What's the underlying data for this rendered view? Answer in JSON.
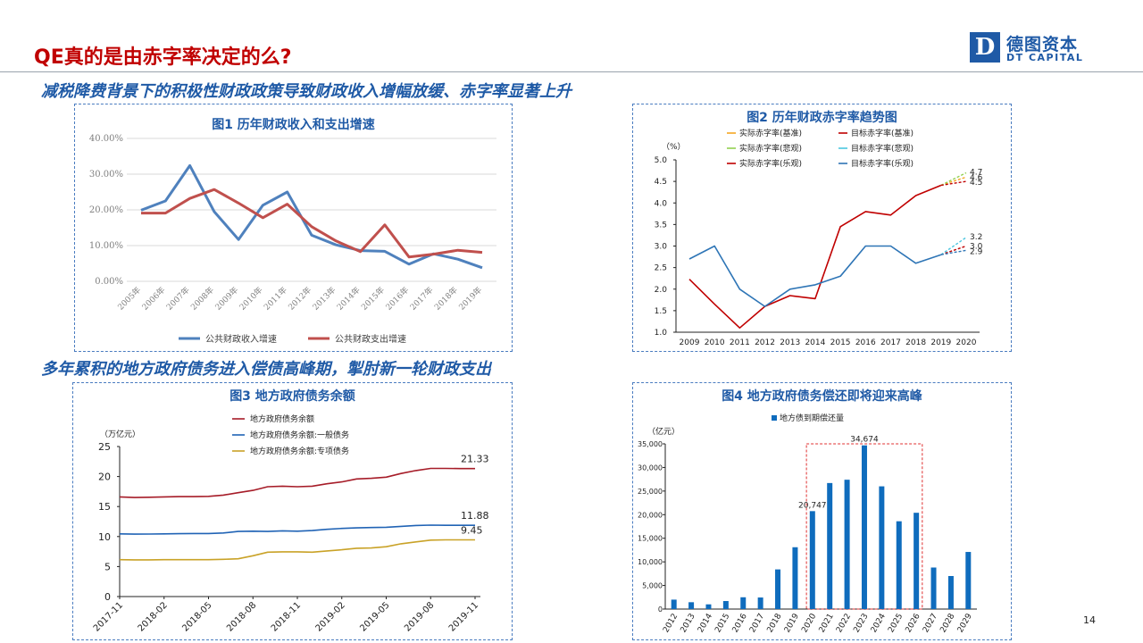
{
  "slide": {
    "title": "QE真的是由赤字率决定的么?",
    "section1": "减税降费背景下的积极性财政政策导致财政收入增幅放缓、赤字率显著上升",
    "section2": "多年累积的地方政府债务进入偿债高峰期，掣肘新一轮财政支出",
    "page_number": "14"
  },
  "logo": {
    "letter": "D",
    "cn": "德图资本",
    "en": "DT CAPITAL",
    "color": "#1f5aa6"
  },
  "colors": {
    "title": "#c00000",
    "accent": "#1f5aa6",
    "panel_border": "#4a7cc0"
  },
  "chart_data": [
    {
      "type": "line",
      "title": "图1 历年财政收入和支出增速",
      "categories": [
        "2005年",
        "2006年",
        "2007年",
        "2008年",
        "2009年",
        "2010年",
        "2011年",
        "2012年",
        "2013年",
        "2014年",
        "2015年",
        "2016年",
        "2017年",
        "2018年",
        "2019年"
      ],
      "ylim": [
        0,
        40
      ],
      "yticks": [
        "0.00%",
        "10.00%",
        "20.00%",
        "30.00%",
        "40.00%"
      ],
      "grid": true,
      "legend": "bottom",
      "series": [
        {
          "name": "公共财政收入增速",
          "color": "#4f81bd",
          "values": [
            19.9,
            22.5,
            32.4,
            19.5,
            11.7,
            21.3,
            25.0,
            12.9,
            10.2,
            8.6,
            8.4,
            4.8,
            7.7,
            6.2,
            3.8
          ]
        },
        {
          "name": "公共财政支出增速",
          "color": "#c0504d",
          "values": [
            19.1,
            19.1,
            23.2,
            25.7,
            21.9,
            17.8,
            21.6,
            15.3,
            11.3,
            8.3,
            15.8,
            6.8,
            7.6,
            8.7,
            8.1
          ]
        }
      ]
    },
    {
      "type": "line",
      "title": "图2 历年财政赤字率趋势图",
      "ylabel": "（%）",
      "categories": [
        "2009",
        "2010",
        "2011",
        "2012",
        "2013",
        "2014",
        "2015",
        "2016",
        "2017",
        "2018",
        "2019",
        "2020"
      ],
      "ylim": [
        1.0,
        5.0
      ],
      "yticks": [
        "1.0",
        "1.5",
        "2.0",
        "2.5",
        "3.0",
        "3.5",
        "4.0",
        "4.5",
        "5.0"
      ],
      "grid": false,
      "legend": "top",
      "series": [
        {
          "name": "实际赤字率(乐观)",
          "color": "#c00000",
          "values": [
            2.23,
            1.65,
            1.1,
            1.6,
            1.85,
            1.78,
            3.45,
            3.8,
            3.72,
            4.17,
            4.41,
            null
          ]
        },
        {
          "name": "目标赤字率(乐观)",
          "color": "#2e75b6",
          "values": [
            2.7,
            3.0,
            2.0,
            1.6,
            2.0,
            2.1,
            2.3,
            3.0,
            3.0,
            2.6,
            2.8,
            null
          ]
        }
      ],
      "projections": [
        {
          "name": "实际赤字率(基准)",
          "color": "#f5a623",
          "from": 4.41,
          "to": 4.6
        },
        {
          "name": "实际赤字率(悲观)",
          "color": "#92d050",
          "from": 4.41,
          "to": 4.7
        },
        {
          "name": "目标赤字率(基准)",
          "color": "#c00000",
          "from": 2.8,
          "to": 3.0
        },
        {
          "name": "目标赤字率(悲观)",
          "color": "#4bc6e0",
          "from": 2.8,
          "to": 3.2
        },
        {
          "name": "实际赤字率(乐观)",
          "color": "#c00000",
          "from": 4.41,
          "to": 4.5
        },
        {
          "name": "目标赤字率(乐观)",
          "color": "#2e75b6",
          "from": 2.8,
          "to": 2.9
        }
      ],
      "legend_entries": [
        {
          "name": "实际赤字率(基准)",
          "color": "#f5a623",
          "dash": false
        },
        {
          "name": "目标赤字率(基准)",
          "color": "#c00000",
          "dash": false
        },
        {
          "name": "实际赤字率(悲观)",
          "color": "#92d050",
          "dash": false
        },
        {
          "name": "目标赤字率(悲观)",
          "color": "#4bc6e0",
          "dash": false
        },
        {
          "name": "实际赤字率(乐观)",
          "color": "#c00000",
          "dash": false
        },
        {
          "name": "目标赤字率(乐观)",
          "color": "#2e75b6",
          "dash": false
        }
      ],
      "end_labels": [
        "4.7",
        "4.6",
        "4.5",
        "3.2",
        "3.0",
        "2.9"
      ]
    },
    {
      "type": "line",
      "title": "图3 地方政府债务余额",
      "ylabel": "（万亿元）",
      "xticks": [
        "2017-11",
        "2018-02",
        "2018-05",
        "2018-08",
        "2018-11",
        "2019-02",
        "2019-05",
        "2019-08",
        "2019-11"
      ],
      "ylim": [
        0,
        25
      ],
      "yticks": [
        "0",
        "5",
        "10",
        "15",
        "20",
        "25"
      ],
      "legend": "top",
      "series": [
        {
          "name": "地方政府债务余额",
          "color": "#a61c28",
          "values": [
            16.6,
            16.5,
            16.55,
            16.6,
            16.65,
            16.65,
            16.7,
            16.9,
            17.3,
            17.7,
            18.3,
            18.4,
            18.3,
            18.4,
            18.8,
            19.1,
            19.6,
            19.7,
            19.9,
            20.5,
            21.0,
            21.35,
            21.35,
            21.33,
            21.33
          ],
          "end_label": "21.33"
        },
        {
          "name": "地方政府债务余额:一般债务",
          "color": "#2063b5",
          "values": [
            10.45,
            10.4,
            10.42,
            10.45,
            10.48,
            10.5,
            10.5,
            10.6,
            10.85,
            10.9,
            10.85,
            10.95,
            10.9,
            11.0,
            11.2,
            11.35,
            11.45,
            11.5,
            11.55,
            11.7,
            11.85,
            11.9,
            11.88,
            11.88,
            11.88
          ],
          "end_label": "11.88"
        },
        {
          "name": "地方政府债务余额:专项债务",
          "color": "#c9a227",
          "values": [
            6.15,
            6.12,
            6.12,
            6.14,
            6.15,
            6.15,
            6.15,
            6.2,
            6.3,
            6.8,
            7.4,
            7.45,
            7.45,
            7.4,
            7.6,
            7.8,
            8.05,
            8.1,
            8.3,
            8.8,
            9.1,
            9.4,
            9.45,
            9.45,
            9.45
          ],
          "end_label": "9.45"
        }
      ]
    },
    {
      "type": "bar",
      "title": "图4 地方政府债务偿还即将迎来高峰",
      "ylabel": "（亿元）",
      "legend": "top",
      "series_name": "地方债到期偿还量",
      "color": "#0f6cbd",
      "categories": [
        "2012",
        "2013",
        "2014",
        "2015",
        "2016",
        "2017",
        "2018",
        "2019",
        "2020",
        "2021",
        "2022",
        "2023",
        "2024",
        "2025",
        "2026",
        "2027",
        "2028",
        "2029"
      ],
      "values": [
        2000,
        1450,
        1000,
        1700,
        2500,
        2450,
        8400,
        13100,
        20747,
        26700,
        27400,
        34674,
        26000,
        18600,
        20400,
        8800,
        7000,
        12100
      ],
      "value_labels": {
        "8": "20,747",
        "11": "34,674"
      },
      "ylim": [
        0,
        35000
      ],
      "yticks": [
        "0",
        "5,000",
        "10,000",
        "15,000",
        "20,000",
        "25,000",
        "30,000",
        "35,000"
      ],
      "highlight_range": [
        "2020",
        "2026"
      ]
    }
  ]
}
